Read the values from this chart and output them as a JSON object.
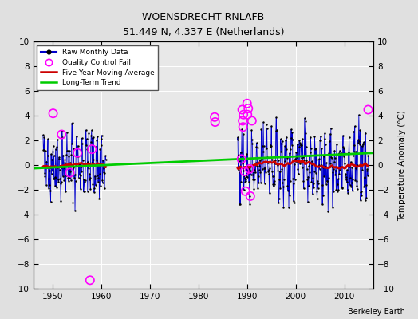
{
  "title": "WOENSDRECHT RNLAFB",
  "subtitle": "51.449 N, 4.337 E (Netherlands)",
  "ylabel": "Temperature Anomaly (°C)",
  "credit": "Berkeley Earth",
  "ylim": [
    -10,
    10
  ],
  "xlim": [
    1946,
    2016
  ],
  "xticks": [
    1950,
    1960,
    1970,
    1980,
    1990,
    2000,
    2010
  ],
  "yticks": [
    -10,
    -8,
    -6,
    -4,
    -2,
    0,
    2,
    4,
    6,
    8,
    10
  ],
  "plot_bg": "#e8e8e8",
  "fig_bg": "#e0e0e0",
  "raw_color": "#0000cc",
  "qc_color": "#ff00ff",
  "ma_color": "#cc0000",
  "trend_color": "#00cc00",
  "trend_x": [
    1946,
    2016
  ],
  "trend_y": [
    -0.25,
    1.0
  ],
  "seg1_years": [
    1948,
    1960
  ],
  "seg2_years": [
    1988,
    2014
  ],
  "seg1_seed": 42,
  "seg2_seed": 77,
  "seasonal": [
    1.8,
    1.4,
    0.4,
    0.3,
    -0.3,
    -0.6,
    -0.9,
    -1.1,
    -1.0,
    -0.4,
    0.4,
    1.4
  ],
  "noise_scale": 1.3,
  "qc1_x": [
    1950.08,
    1951.83,
    1953.5,
    1955.08,
    1957.67,
    1958.08
  ],
  "qc1_y": [
    4.2,
    2.5,
    -0.6,
    1.0,
    -9.3,
    1.3
  ],
  "qc2_x": [
    1983.33,
    1983.42,
    1988.83,
    1989.0,
    1989.08,
    1989.17,
    1989.25,
    1989.5,
    1989.67,
    1990.0,
    1990.08,
    1990.25,
    1990.5,
    1990.67,
    1991.0,
    2014.92
  ],
  "qc2_y": [
    3.9,
    3.5,
    0.5,
    4.5,
    3.6,
    3.1,
    4.1,
    -0.5,
    -2.1,
    5.0,
    4.1,
    4.6,
    -0.3,
    -2.5,
    3.6,
    4.5
  ]
}
